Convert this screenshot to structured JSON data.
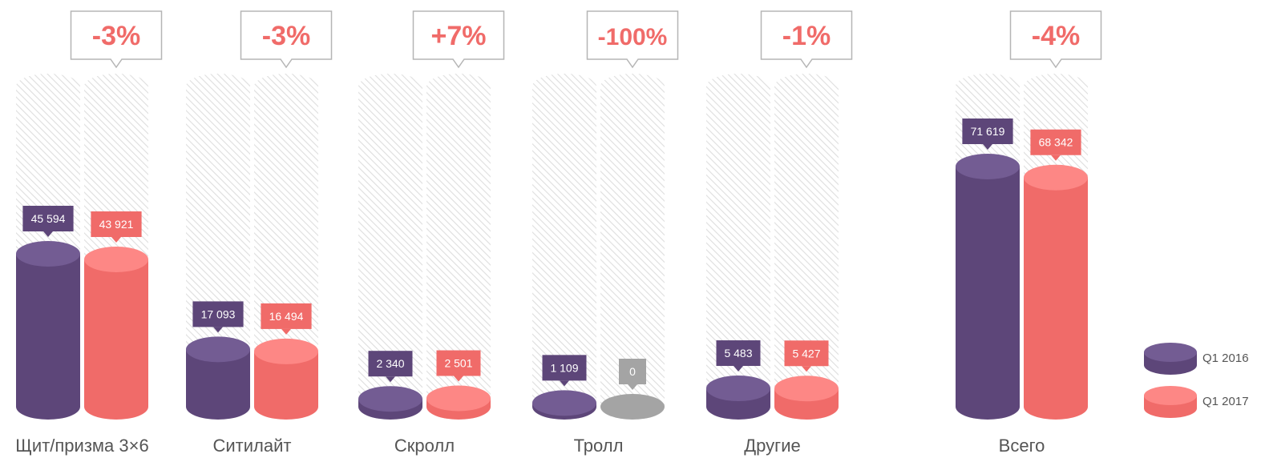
{
  "chart_data": {
    "type": "bar",
    "categories": [
      "Щит/призма 3×6",
      "Ситилайт",
      "Скролл",
      "Тролл",
      "Другие",
      "Всего"
    ],
    "changes": [
      "-3%",
      "-3%",
      "+7%",
      "-100%",
      "-1%",
      "-4%"
    ],
    "series": [
      {
        "name": "Q1 2016",
        "values": [
          45594,
          17093,
          2340,
          1109,
          5483,
          71619
        ],
        "labels": [
          "45 594",
          "17 093",
          "2 340",
          "1 109",
          "5 483",
          "71 619"
        ]
      },
      {
        "name": "Q1 2017",
        "values": [
          43921,
          16494,
          2501,
          0,
          5427,
          68342
        ],
        "labels": [
          "43 921",
          "16 494",
          "2 501",
          "0",
          "5 427",
          "68 342"
        ]
      }
    ],
    "colors": {
      "Q1 2016": "#5d4679",
      "Q1 2016_top": "#735c93",
      "Q1 2017": "#f06b69",
      "Q1 2017_top": "#fd8785",
      "zero": "#a4a4a4",
      "change_text": "#f06b69",
      "tube_stripe": "#dedede"
    },
    "legend_position": "bottom-right",
    "grid": false
  }
}
